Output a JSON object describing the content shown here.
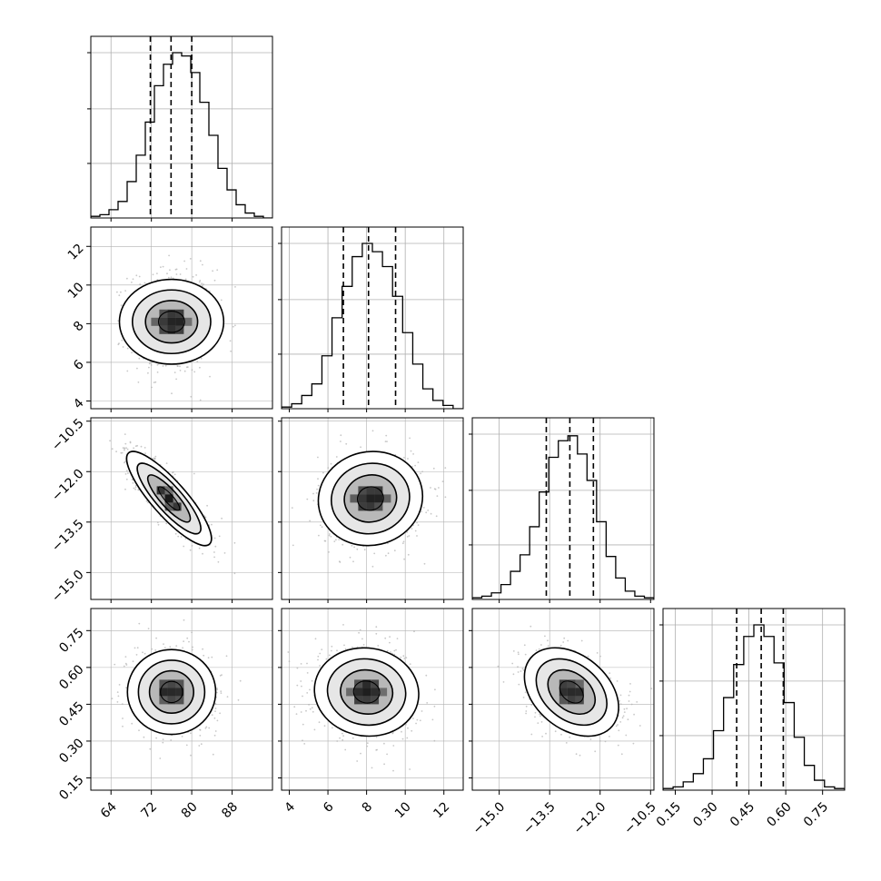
{
  "chart_data": {
    "type": "corner",
    "parameters": [
      {
        "index": 0,
        "range": [
          60,
          96
        ],
        "ticks": [
          64,
          72,
          80,
          88
        ],
        "tick_labels": [
          "64",
          "72",
          "80",
          "88"
        ],
        "quantiles": [
          71.8,
          75.9,
          80.0
        ],
        "histogram": [
          0.01,
          0.02,
          0.05,
          0.1,
          0.22,
          0.38,
          0.58,
          0.8,
          0.93,
          1.0,
          0.98,
          0.88,
          0.7,
          0.5,
          0.3,
          0.17,
          0.08,
          0.03,
          0.01,
          0.0
        ]
      },
      {
        "index": 1,
        "range": [
          3.6,
          13.0
        ],
        "ticks": [
          4,
          6,
          8,
          10,
          12
        ],
        "tick_labels": [
          "4",
          "6",
          "8",
          "10",
          "12"
        ],
        "quantiles": [
          6.8,
          8.1,
          9.5
        ],
        "histogram": [
          0.01,
          0.03,
          0.08,
          0.15,
          0.32,
          0.55,
          0.74,
          0.92,
          1.0,
          0.95,
          0.86,
          0.68,
          0.46,
          0.27,
          0.12,
          0.05,
          0.02,
          0.0
        ]
      },
      {
        "index": 2,
        "range": [
          -15.8,
          -10.4
        ],
        "ticks": [
          -15.0,
          -13.5,
          -12.0,
          -10.5
        ],
        "tick_labels": [
          "−15.0",
          "−13.5",
          "−12.0",
          "−10.5"
        ],
        "quantiles": [
          -13.6,
          -12.9,
          -12.2
        ],
        "histogram": [
          0.01,
          0.02,
          0.04,
          0.09,
          0.17,
          0.27,
          0.44,
          0.65,
          0.86,
          0.96,
          0.99,
          0.88,
          0.72,
          0.47,
          0.26,
          0.13,
          0.05,
          0.02,
          0.01
        ]
      },
      {
        "index": 3,
        "range": [
          0.1,
          0.84
        ],
        "ticks": [
          0.15,
          0.3,
          0.45,
          0.6,
          0.75
        ],
        "tick_labels": [
          "0.15",
          "0.30",
          "0.45",
          "0.60",
          "0.75"
        ],
        "quantiles": [
          0.4,
          0.5,
          0.59
        ],
        "histogram": [
          0.01,
          0.02,
          0.05,
          0.1,
          0.19,
          0.36,
          0.56,
          0.76,
          0.93,
          1.0,
          0.93,
          0.77,
          0.53,
          0.32,
          0.15,
          0.06,
          0.02,
          0.01
        ]
      }
    ],
    "pairs": [
      {
        "row": 1,
        "col": 0,
        "mean": [
          76.0,
          8.1
        ],
        "sd": [
          4.2,
          1.35
        ],
        "rho": 0.0
      },
      {
        "row": 2,
        "col": 0,
        "mean": [
          75.5,
          -12.8
        ],
        "sd": [
          4.2,
          0.7
        ],
        "rho": -0.85
      },
      {
        "row": 2,
        "col": 1,
        "mean": [
          8.2,
          -12.8
        ],
        "sd": [
          1.35,
          0.7
        ],
        "rho": 0.05
      },
      {
        "row": 3,
        "col": 0,
        "mean": [
          76.0,
          0.5
        ],
        "sd": [
          4.2,
          0.09
        ],
        "rho": 0.0
      },
      {
        "row": 3,
        "col": 1,
        "mean": [
          8.0,
          0.5
        ],
        "sd": [
          1.35,
          0.09
        ],
        "rho": -0.05
      },
      {
        "row": 3,
        "col": 2,
        "mean": [
          -12.85,
          0.5
        ],
        "sd": [
          0.7,
          0.09
        ],
        "rho": -0.35
      }
    ],
    "contour_levels_sigma": [
      0.5,
      1.0,
      1.5,
      2.0
    ],
    "grid": true,
    "colors": {
      "line": "#000000",
      "points": "#b0b0b0",
      "density_dark": "#202020",
      "density_light": "#f4f4f4",
      "grid": "#b0b0b0"
    }
  }
}
